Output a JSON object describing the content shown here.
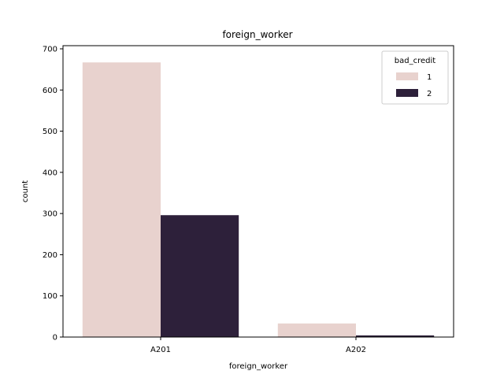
{
  "chart_data": {
    "type": "bar",
    "title": "foreign_worker",
    "xlabel": "foreign_worker",
    "ylabel": "count",
    "categories": [
      "A201",
      "A202"
    ],
    "series": [
      {
        "name": "1",
        "values": [
          667,
          33
        ],
        "color": "#e8d2ce"
      },
      {
        "name": "2",
        "values": [
          296,
          4
        ],
        "color": "#2d203a"
      }
    ],
    "ylim": [
      0,
      700
    ],
    "yticks": [
      0,
      100,
      200,
      300,
      400,
      500,
      600,
      700
    ],
    "legend": {
      "title": "bad_credit",
      "placement": "top-right"
    },
    "grid": false
  }
}
